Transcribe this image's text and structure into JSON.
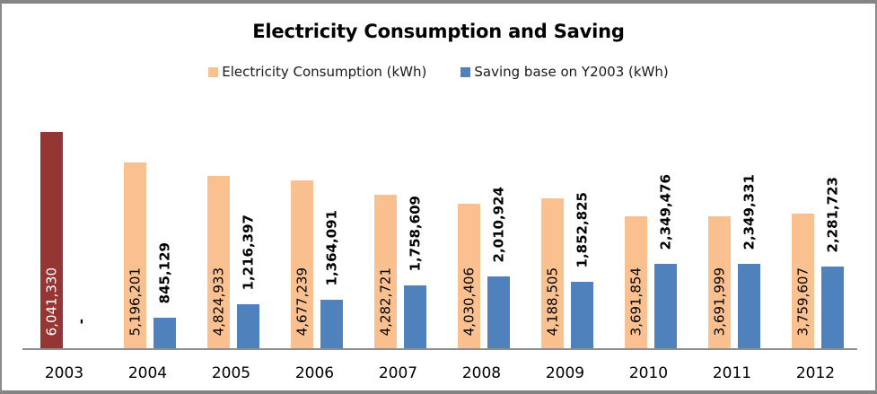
{
  "chart_data": {
    "type": "bar",
    "title": "Electricity Consumption and Saving",
    "categories": [
      "2003",
      "2004",
      "2005",
      "2006",
      "2007",
      "2008",
      "2009",
      "2010",
      "2011",
      "2012"
    ],
    "series": [
      {
        "name": "Electricity Consumption (kWh)",
        "color": "#FAC090",
        "values": [
          6041330,
          5196201,
          4824933,
          4677239,
          4282721,
          4030406,
          4188505,
          3691854,
          3691999,
          3759607
        ],
        "labels": [
          "6,041,330",
          "5,196,201",
          "4,824,933",
          "4,677,239",
          "4,282,721",
          "4,030,406",
          "4,188,505",
          "3,691,854",
          "3,691,999",
          "3,759,607"
        ]
      },
      {
        "name": "Saving base on Y2003 (kWh)",
        "color": "#4F81BD",
        "values": [
          0,
          845129,
          1216397,
          1364091,
          1758609,
          2010924,
          1852825,
          2349476,
          2349331,
          2281723
        ],
        "labels": [
          "-",
          "845,129",
          "1,216,397",
          "1,364,091",
          "1,758,609",
          "2,010,924",
          "1,852,825",
          "2,349,476",
          "2,349,331",
          "2,281,723"
        ]
      }
    ],
    "highlight": {
      "category": "2003",
      "series_index": 0,
      "bar_color": "#963634",
      "label_color": "#FFFFFF"
    },
    "ylim": [
      0,
      6041330
    ],
    "grid": false,
    "legend_position": "top",
    "label_rotation": 90,
    "axis_color": "#8E8E8E"
  }
}
